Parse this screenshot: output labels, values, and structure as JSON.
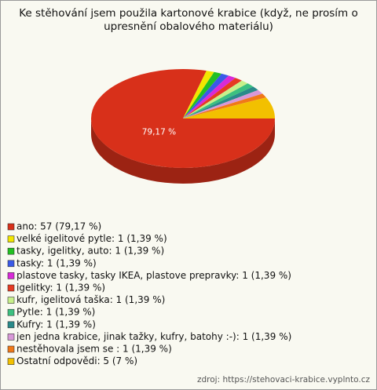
{
  "chart_data": {
    "type": "pie3d",
    "title": "Ke stěhování jsem použila kartonové krabice (když, ne prosím o upresnění obalového materiálu)",
    "categories": [
      "ano: 57 (79,17 %)",
      "velké igelitové pytle: 1 (1,39 %)",
      "tasky, igelitky, auto: 1 (1,39 %)",
      "tasky: 1 (1,39 %)",
      "plastove tasky, tasky IKEA, plastove prepravky: 1 (1,39 %)",
      "igelitky: 1 (1,39 %)",
      "kufr, igelitová taška: 1 (1,39 %)",
      "Pytle: 1 (1,39 %)",
      "Kufry: 1 (1,39 %)",
      "jen jedna krabice, jinak tažky, kufry, batohy :-): 1 (1,39 %)",
      "nestěhovala jsem se : 1 (1,39 %)",
      "Ostatní odpovědi: 5 (7 %)"
    ],
    "values": [
      79.17,
      1.39,
      1.39,
      1.39,
      1.39,
      1.39,
      1.39,
      1.39,
      1.39,
      1.39,
      1.39,
      7
    ],
    "value_labels": [
      "79,17 %",
      null,
      null,
      null,
      null,
      null,
      null,
      null,
      null,
      null,
      null,
      null
    ],
    "colors": [
      "#d8301a",
      "#f2e600",
      "#22c022",
      "#3a5ae8",
      "#d82ad8",
      "#e63a22",
      "#c8f08a",
      "#3cc080",
      "#2a8a8a",
      "#d898d8",
      "#f07818",
      "#f2c000"
    ],
    "source": "zdroj: https://stehovaci-krabice.vyplnto.cz"
  }
}
